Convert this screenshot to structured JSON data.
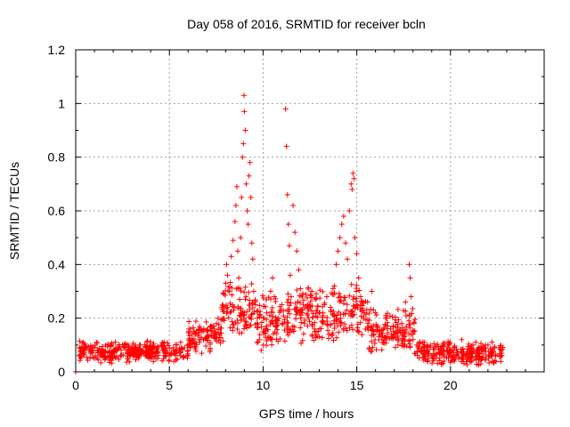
{
  "chart_data": {
    "type": "scatter",
    "title": "Day 058 of 2016, SRMTID for receiver bcln",
    "xlabel": "GPS time / hours",
    "ylabel": "SRMTID / TECUs",
    "xlim": [
      0,
      25
    ],
    "ylim": [
      0,
      1.2
    ],
    "x_ticks": [
      0,
      5,
      10,
      15,
      20
    ],
    "x_tick_labels": [
      "0",
      "5",
      "10",
      "15",
      "20"
    ],
    "y_ticks": [
      0,
      0.2,
      0.4,
      0.6,
      0.8,
      1,
      1.2
    ],
    "y_tick_labels": [
      "0",
      "0.2",
      "0.4",
      "0.6",
      "0.8",
      "1",
      "1.2"
    ],
    "grid": true,
    "marker": "+",
    "series": [
      {
        "name": "SRMTID",
        "color": "#ff0000",
        "points": [
          [
            0.0,
            0.0
          ],
          [
            0.2,
            0.06
          ],
          [
            0.4,
            0.11
          ],
          [
            0.6,
            0.09
          ],
          [
            0.8,
            0.07
          ],
          [
            1.0,
            0.05
          ],
          [
            1.2,
            0.08
          ],
          [
            1.4,
            0.06
          ],
          [
            1.6,
            0.1
          ],
          [
            1.8,
            0.07
          ],
          [
            2.0,
            0.05
          ],
          [
            2.2,
            0.08
          ],
          [
            2.4,
            0.06
          ],
          [
            2.6,
            0.09
          ],
          [
            2.8,
            0.05
          ],
          [
            3.0,
            0.07
          ],
          [
            3.2,
            0.09
          ],
          [
            3.4,
            0.06
          ],
          [
            3.6,
            0.08
          ],
          [
            3.8,
            0.07
          ],
          [
            4.0,
            0.05
          ],
          [
            4.2,
            0.09
          ],
          [
            4.4,
            0.07
          ],
          [
            4.6,
            0.1
          ],
          [
            4.8,
            0.08
          ],
          [
            5.0,
            0.06
          ],
          [
            5.2,
            0.09
          ],
          [
            5.4,
            0.08
          ],
          [
            5.6,
            0.11
          ],
          [
            5.8,
            0.09
          ],
          [
            6.0,
            0.1
          ],
          [
            6.2,
            0.12
          ],
          [
            6.4,
            0.14
          ],
          [
            6.6,
            0.11
          ],
          [
            6.8,
            0.15
          ],
          [
            7.0,
            0.13
          ],
          [
            7.2,
            0.17
          ],
          [
            7.4,
            0.16
          ],
          [
            7.6,
            0.2
          ],
          [
            7.8,
            0.24
          ],
          [
            7.9,
            0.29
          ],
          [
            8.0,
            0.33
          ],
          [
            8.05,
            0.4
          ],
          [
            8.1,
            0.36
          ],
          [
            8.2,
            0.3
          ],
          [
            8.3,
            0.43
          ],
          [
            8.4,
            0.49
          ],
          [
            8.5,
            0.56
          ],
          [
            8.55,
            0.62
          ],
          [
            8.6,
            0.69
          ],
          [
            8.65,
            0.45
          ],
          [
            8.7,
            0.35
          ],
          [
            8.75,
            0.27
          ],
          [
            8.8,
            0.5
          ],
          [
            8.85,
            0.65
          ],
          [
            8.9,
            0.8
          ],
          [
            8.95,
            0.85
          ],
          [
            9.0,
            0.97
          ],
          [
            8.98,
            1.03
          ],
          [
            9.05,
            0.9
          ],
          [
            9.1,
            0.7
          ],
          [
            9.15,
            0.6
          ],
          [
            9.2,
            0.55
          ],
          [
            9.25,
            0.73
          ],
          [
            9.3,
            0.78
          ],
          [
            9.35,
            0.65
          ],
          [
            9.4,
            0.48
          ],
          [
            9.45,
            0.42
          ],
          [
            9.5,
            0.3
          ],
          [
            9.6,
            0.25
          ],
          [
            9.7,
            0.2
          ],
          [
            9.8,
            0.12
          ],
          [
            9.9,
            0.08
          ],
          [
            10.0,
            0.15
          ],
          [
            10.2,
            0.22
          ],
          [
            10.4,
            0.3
          ],
          [
            10.5,
            0.35
          ],
          [
            10.6,
            0.28
          ],
          [
            10.8,
            0.2
          ],
          [
            11.0,
            0.25
          ],
          [
            11.2,
            0.98
          ],
          [
            11.25,
            0.84
          ],
          [
            11.3,
            0.66
          ],
          [
            11.35,
            0.55
          ],
          [
            11.4,
            0.47
          ],
          [
            11.45,
            0.36
          ],
          [
            11.5,
            0.28
          ],
          [
            11.6,
            0.62
          ],
          [
            11.7,
            0.52
          ],
          [
            11.8,
            0.45
          ],
          [
            11.9,
            0.38
          ],
          [
            12.0,
            0.31
          ],
          [
            12.1,
            0.22
          ],
          [
            12.2,
            0.18
          ],
          [
            12.4,
            0.25
          ],
          [
            12.6,
            0.3
          ],
          [
            12.8,
            0.27
          ],
          [
            13.0,
            0.22
          ],
          [
            13.2,
            0.19
          ],
          [
            13.4,
            0.28
          ],
          [
            13.6,
            0.24
          ],
          [
            13.8,
            0.32
          ],
          [
            13.9,
            0.4
          ],
          [
            14.0,
            0.45
          ],
          [
            14.1,
            0.5
          ],
          [
            14.2,
            0.55
          ],
          [
            14.3,
            0.58
          ],
          [
            14.4,
            0.48
          ],
          [
            14.5,
            0.42
          ],
          [
            14.6,
            0.6
          ],
          [
            14.7,
            0.7
          ],
          [
            14.75,
            0.68
          ],
          [
            14.8,
            0.74
          ],
          [
            14.85,
            0.72
          ],
          [
            14.9,
            0.5
          ],
          [
            15.0,
            0.44
          ],
          [
            15.1,
            0.35
          ],
          [
            15.2,
            0.28
          ],
          [
            15.4,
            0.22
          ],
          [
            15.6,
            0.18
          ],
          [
            15.8,
            0.3
          ],
          [
            16.0,
            0.22
          ],
          [
            16.2,
            0.15
          ],
          [
            16.4,
            0.12
          ],
          [
            16.6,
            0.2
          ],
          [
            16.8,
            0.16
          ],
          [
            17.0,
            0.14
          ],
          [
            17.2,
            0.1
          ],
          [
            17.4,
            0.18
          ],
          [
            17.6,
            0.26
          ],
          [
            17.8,
            0.4
          ],
          [
            17.85,
            0.35
          ],
          [
            17.9,
            0.28
          ],
          [
            18.0,
            0.12
          ],
          [
            18.2,
            0.1
          ],
          [
            18.4,
            0.08
          ],
          [
            18.6,
            0.11
          ],
          [
            18.8,
            0.08
          ],
          [
            19.0,
            0.06
          ],
          [
            19.2,
            0.09
          ],
          [
            19.4,
            0.07
          ],
          [
            19.6,
            0.1
          ],
          [
            19.8,
            0.08
          ],
          [
            20.0,
            0.06
          ],
          [
            20.2,
            0.09
          ],
          [
            20.4,
            0.07
          ],
          [
            20.6,
            0.12
          ],
          [
            20.8,
            0.06
          ],
          [
            21.0,
            0.08
          ],
          [
            21.2,
            0.1
          ],
          [
            21.4,
            0.07
          ],
          [
            21.6,
            0.05
          ],
          [
            21.8,
            0.09
          ],
          [
            22.0,
            0.1
          ],
          [
            22.2,
            0.07
          ],
          [
            22.4,
            0.06
          ],
          [
            22.6,
            0.09
          ],
          [
            22.7,
            0.08
          ]
        ]
      }
    ],
    "density_bands": [
      {
        "x_from": 0.2,
        "x_to": 6.0,
        "y_min": 0.03,
        "y_max": 0.12
      },
      {
        "x_from": 6.0,
        "x_to": 7.8,
        "y_min": 0.06,
        "y_max": 0.2
      },
      {
        "x_from": 7.8,
        "x_to": 9.6,
        "y_min": 0.1,
        "y_max": 0.35
      },
      {
        "x_from": 9.6,
        "x_to": 11.2,
        "y_min": 0.07,
        "y_max": 0.3
      },
      {
        "x_from": 11.2,
        "x_to": 13.6,
        "y_min": 0.1,
        "y_max": 0.33
      },
      {
        "x_from": 13.6,
        "x_to": 15.6,
        "y_min": 0.1,
        "y_max": 0.35
      },
      {
        "x_from": 15.6,
        "x_to": 18.2,
        "y_min": 0.05,
        "y_max": 0.25
      },
      {
        "x_from": 18.2,
        "x_to": 22.8,
        "y_min": 0.02,
        "y_max": 0.12
      }
    ]
  }
}
